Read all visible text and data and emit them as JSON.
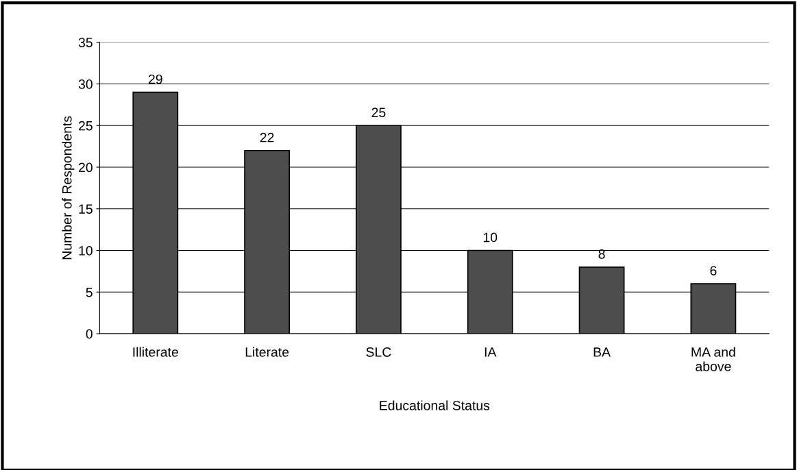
{
  "chart_data": {
    "type": "bar",
    "xlabel": "Educational Status",
    "ylabel": "Number of Respondents",
    "categories": [
      "Illiterate",
      "Literate",
      "SLC",
      "IA",
      "BA",
      "MA and\nabove"
    ],
    "values": [
      29,
      22,
      25,
      10,
      8,
      6
    ],
    "color": "#4d4d4d",
    "ylim": [
      0,
      35
    ],
    "yticks": [
      0,
      5,
      10,
      15,
      20,
      25,
      30,
      35
    ],
    "grid": "y",
    "data_labels": true
  }
}
